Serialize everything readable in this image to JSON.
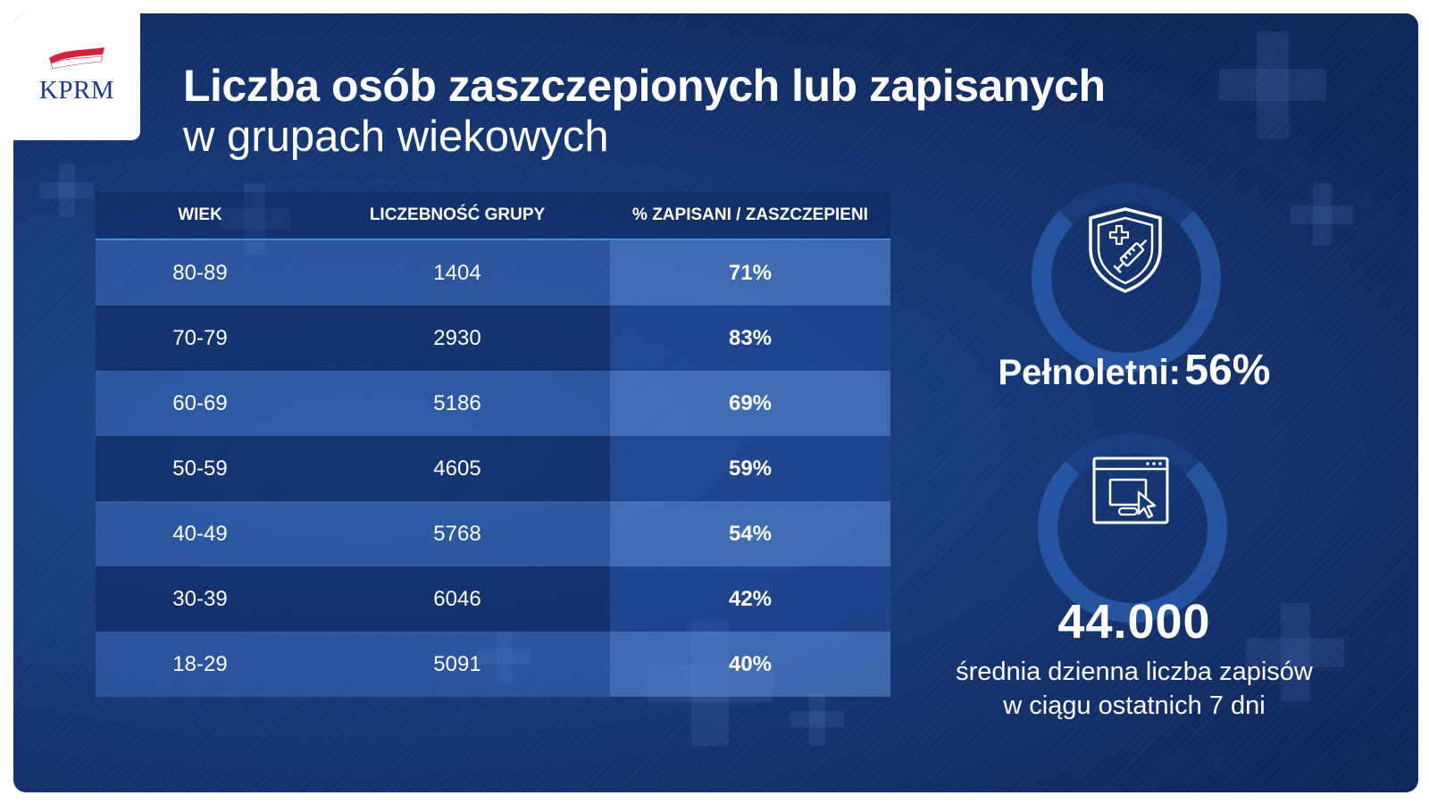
{
  "branding": {
    "logo_text": "KPRM",
    "flag_colors": [
      "#ffffff",
      "#d4213d"
    ]
  },
  "header": {
    "title": "Liczba osób zaszczepionych lub zapisanych",
    "subtitle": "w grupach wiekowych"
  },
  "table": {
    "columns": [
      "WIEK",
      "LICZEBNOŚĆ GRUPY",
      "% ZAPISANI / ZASZCZEPIENI"
    ],
    "rows": [
      {
        "age": "80-89",
        "count": "1404",
        "pct": "71%"
      },
      {
        "age": "70-79",
        "count": "2930",
        "pct": "83%"
      },
      {
        "age": "60-69",
        "count": "5186",
        "pct": "69%"
      },
      {
        "age": "50-59",
        "count": "4605",
        "pct": "59%"
      },
      {
        "age": "40-49",
        "count": "5768",
        "pct": "54%"
      },
      {
        "age": "30-39",
        "count": "6046",
        "pct": "42%"
      },
      {
        "age": "18-29",
        "count": "5091",
        "pct": "40%"
      }
    ]
  },
  "stats": {
    "adult_label": "Pełnoletni:",
    "adult_value": "56%",
    "daily_signups_value": "44.000",
    "daily_signups_caption_line1": "średnia dzienna liczba zapisów",
    "daily_signups_caption_line2": "w ciągu ostatnich 7 dni"
  },
  "icons": [
    "shield-syringe-icon",
    "browser-click-icon"
  ],
  "colors": {
    "background_dark": "#10275a",
    "background_mid": "#1f4a8f",
    "header_rule": "#3d8fe0",
    "text": "#ffffff",
    "logo_text": "#1d3a8a"
  }
}
